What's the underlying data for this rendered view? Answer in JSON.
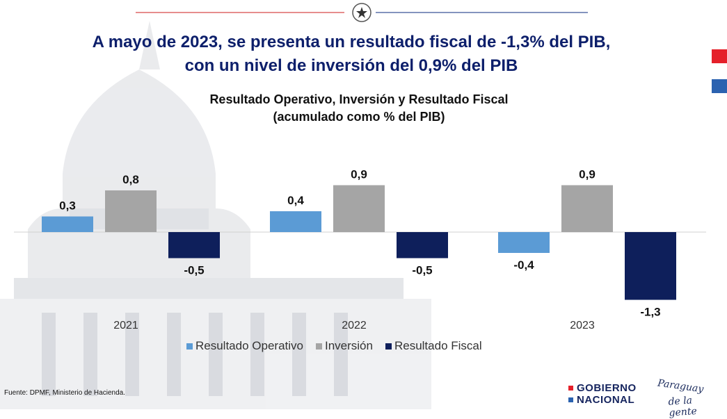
{
  "headline": {
    "line1": "A mayo de 2023, se presenta un resultado fiscal de -1,3% del PIB,",
    "line2": "con un nivel de inversión del 0,9% del PIB"
  },
  "chart_data": {
    "type": "bar",
    "title": "Resultado Operativo, Inversión y Resultado Fiscal",
    "subtitle": "(acumulado como % del PIB)",
    "categories": [
      "2021",
      "2022",
      "2023"
    ],
    "series": [
      {
        "name": "Resultado Operativo",
        "values": [
          0.3,
          0.4,
          -0.4
        ],
        "labels": [
          "0,3",
          "0,4",
          "-0,4"
        ],
        "color": "#5b9bd5"
      },
      {
        "name": "Inversión",
        "values": [
          0.8,
          0.9,
          0.9
        ],
        "labels": [
          "0,8",
          "0,9",
          "0,9"
        ],
        "color": "#a5a5a5"
      },
      {
        "name": "Resultado Fiscal",
        "values": [
          -0.5,
          -0.5,
          -1.3
        ],
        "labels": [
          "-0,5",
          "-0,5",
          "-1,3"
        ],
        "color": "#0e1f5b"
      }
    ],
    "ylim": [
      -1.3,
      0.9
    ],
    "grid": false,
    "legend": "bottom"
  },
  "source": "Fuente: DPMF, Ministerio de Hacienda.",
  "footer": {
    "gov_line1": "GOBIERNO",
    "gov_line2": "NACIONAL",
    "slogan_line1": "Paraguay",
    "slogan_line2": "de la gente"
  },
  "colors": {
    "headline": "#0d1f6b",
    "accent_red": "#e5202a",
    "accent_blue": "#2b62b0"
  }
}
